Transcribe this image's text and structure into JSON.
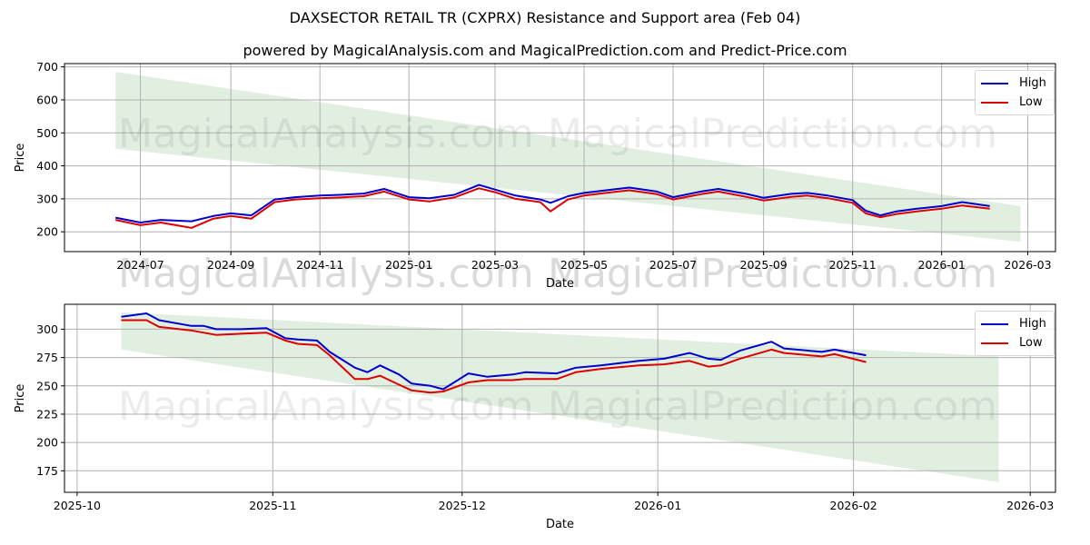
{
  "title": "DAXSECTOR RETAIL TR (CXPRX) Resistance and Support area (Feb 04)",
  "subtitle": "powered by MagicalAnalysis.com and MagicalPrediction.com and Predict-Price.com",
  "watermarks": [
    "MagicalAnalysis.com",
    "MagicalPrediction.com"
  ],
  "colors": {
    "high": "#0000cc",
    "low": "#dd0000",
    "band": "#e1efe1"
  },
  "legend": {
    "high": "High",
    "low": "Low"
  },
  "chart_data": [
    {
      "type": "line",
      "title": "Full range",
      "xlabel": "Date",
      "ylabel": "Price",
      "ylim": [
        140,
        710
      ],
      "yticks": [
        200,
        300,
        400,
        500,
        600,
        700
      ],
      "xticks": [
        "2024-07",
        "2024-09",
        "2024-11",
        "2025-01",
        "2025-03",
        "2025-05",
        "2025-07",
        "2025-09",
        "2025-11",
        "2026-01",
        "2026-03"
      ],
      "grid": true,
      "legend_position": "upper right",
      "x": [
        "2024-06-14",
        "2024-07-01",
        "2024-07-15",
        "2024-08-05",
        "2024-08-20",
        "2024-09-01",
        "2024-09-15",
        "2024-10-01",
        "2024-10-15",
        "2024-11-01",
        "2024-11-15",
        "2024-12-01",
        "2024-12-15",
        "2025-01-01",
        "2025-01-15",
        "2025-02-01",
        "2025-02-18",
        "2025-03-01",
        "2025-03-15",
        "2025-04-01",
        "2025-04-08",
        "2025-04-20",
        "2025-05-01",
        "2025-05-20",
        "2025-06-01",
        "2025-06-20",
        "2025-07-01",
        "2025-07-20",
        "2025-08-01",
        "2025-08-20",
        "2025-09-01",
        "2025-09-20",
        "2025-10-01",
        "2025-10-15",
        "2025-11-01",
        "2025-11-10",
        "2025-11-20",
        "2025-12-01",
        "2025-12-15",
        "2026-01-01",
        "2026-01-15",
        "2026-02-03"
      ],
      "series": [
        {
          "name": "High",
          "values": [
            243,
            228,
            236,
            232,
            248,
            256,
            250,
            298,
            305,
            310,
            312,
            316,
            330,
            305,
            302,
            312,
            342,
            328,
            310,
            298,
            288,
            308,
            318,
            328,
            334,
            322,
            305,
            322,
            330,
            315,
            303,
            315,
            318,
            310,
            296,
            264,
            250,
            262,
            270,
            278,
            290,
            278
          ]
        },
        {
          "name": "Low",
          "values": [
            236,
            220,
            228,
            212,
            240,
            248,
            240,
            290,
            298,
            302,
            304,
            308,
            322,
            298,
            292,
            304,
            332,
            320,
            300,
            290,
            262,
            298,
            310,
            320,
            326,
            314,
            298,
            314,
            322,
            306,
            295,
            306,
            310,
            302,
            288,
            256,
            244,
            254,
            262,
            270,
            280,
            270
          ]
        }
      ],
      "band": {
        "x": [
          "2024-06-14",
          "2026-02-24"
        ],
        "upper": [
          685,
          278
        ],
        "lower": [
          452,
          170
        ]
      }
    },
    {
      "type": "line",
      "title": "Zoomed recent range",
      "xlabel": "Date",
      "ylabel": "Price",
      "ylim": [
        156,
        322
      ],
      "yticks": [
        175,
        200,
        225,
        250,
        275,
        300
      ],
      "xticks": [
        "2025-10",
        "2025-11",
        "2025-12",
        "2026-01",
        "2026-02",
        "2026-03"
      ],
      "grid": true,
      "legend_position": "upper right",
      "x": [
        "2025-10-08",
        "2025-10-12",
        "2025-10-14",
        "2025-10-19",
        "2025-10-21",
        "2025-10-23",
        "2025-10-27",
        "2025-10-31",
        "2025-11-03",
        "2025-11-05",
        "2025-11-08",
        "2025-11-10",
        "2025-11-14",
        "2025-11-16",
        "2025-11-18",
        "2025-11-21",
        "2025-11-23",
        "2025-11-26",
        "2025-11-28",
        "2025-12-02",
        "2025-12-05",
        "2025-12-09",
        "2025-12-11",
        "2025-12-16",
        "2025-12-19",
        "2025-12-23",
        "2025-12-29",
        "2026-01-02",
        "2026-01-06",
        "2026-01-09",
        "2026-01-11",
        "2026-01-14",
        "2026-01-19",
        "2026-01-21",
        "2026-01-27",
        "2026-01-29",
        "2026-02-03"
      ],
      "series": [
        {
          "name": "High",
          "values": [
            311,
            314,
            308,
            303,
            303,
            300,
            300,
            301,
            292,
            291,
            290,
            280,
            266,
            262,
            268,
            260,
            252,
            250,
            247,
            261,
            258,
            260,
            262,
            261,
            266,
            268,
            272,
            274,
            279,
            274,
            273,
            281,
            289,
            283,
            280,
            282,
            277
          ]
        },
        {
          "name": "Low",
          "values": [
            308,
            308,
            302,
            299,
            297,
            295,
            296,
            297,
            290,
            287,
            286,
            277,
            256,
            256,
            259,
            251,
            246,
            244,
            245,
            253,
            255,
            255,
            256,
            256,
            262,
            265,
            268,
            269,
            272,
            267,
            268,
            274,
            282,
            279,
            276,
            278,
            271
          ]
        }
      ],
      "band": {
        "x": [
          "2025-10-08",
          "2026-02-24"
        ],
        "upper": [
          315,
          276
        ],
        "lower": [
          282,
          165
        ]
      }
    }
  ]
}
